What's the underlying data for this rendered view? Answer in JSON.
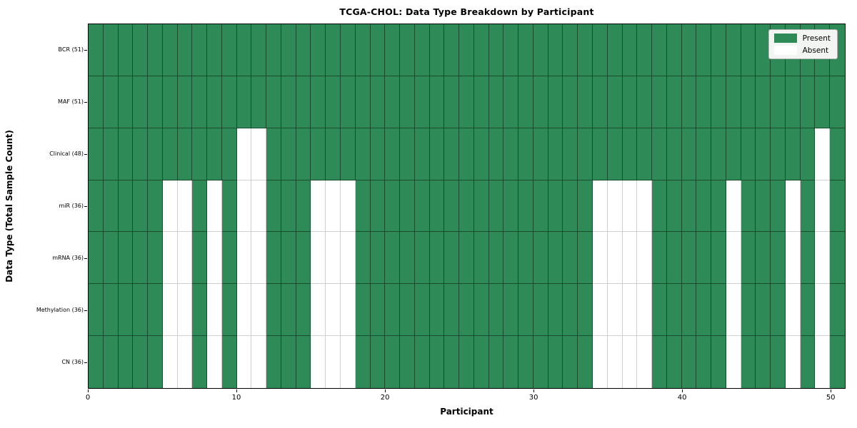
{
  "chart_data": {
    "type": "heatmap",
    "title": "TCGA-CHOL: Data Type Breakdown by Participant",
    "xlabel": "Participant",
    "ylabel": "Data Type (Total Sample Count)",
    "x_axis": {
      "ticks": [
        0,
        10,
        20,
        30,
        40,
        50
      ],
      "range": [
        0,
        51
      ]
    },
    "participants_total": 51,
    "cell_states": {
      "present_value": "Present",
      "absent_value": "Absent"
    },
    "colors": {
      "present": "#2e8b57",
      "absent": "#ffffff"
    },
    "legend": {
      "position": "upper-right",
      "items": [
        {
          "label": "Present",
          "color": "#2e8b57"
        },
        {
          "label": "Absent",
          "color": "#ffffff"
        }
      ]
    },
    "rows": [
      {
        "label": "BCR (51)",
        "data_type": "BCR",
        "total_samples": 51,
        "absent_participants": []
      },
      {
        "label": "MAF (51)",
        "data_type": "MAF",
        "total_samples": 51,
        "absent_participants": []
      },
      {
        "label": "Clinical (48)",
        "data_type": "Clinical",
        "total_samples": 48,
        "absent_participants": [
          10,
          11,
          49
        ]
      },
      {
        "label": "miR (36)",
        "data_type": "miR",
        "total_samples": 36,
        "absent_participants": [
          5,
          6,
          8,
          10,
          11,
          15,
          16,
          17,
          34,
          35,
          36,
          37,
          43,
          47,
          49
        ]
      },
      {
        "label": "mRNA (36)",
        "data_type": "mRNA",
        "total_samples": 36,
        "absent_participants": [
          5,
          6,
          8,
          10,
          11,
          15,
          16,
          17,
          34,
          35,
          36,
          37,
          43,
          47,
          49
        ]
      },
      {
        "label": "Methylation (36)",
        "data_type": "Methylation",
        "total_samples": 36,
        "absent_participants": [
          5,
          6,
          8,
          10,
          11,
          15,
          16,
          17,
          34,
          35,
          36,
          37,
          43,
          47,
          49
        ]
      },
      {
        "label": "CN (36)",
        "data_type": "CN",
        "total_samples": 36,
        "absent_participants": [
          5,
          6,
          8,
          10,
          11,
          15,
          16,
          17,
          34,
          35,
          36,
          37,
          43,
          47,
          49
        ]
      }
    ]
  }
}
